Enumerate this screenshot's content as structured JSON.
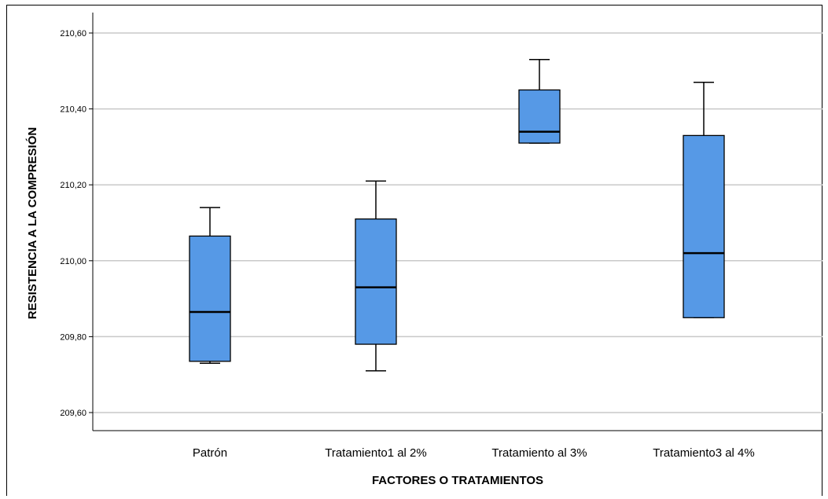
{
  "chart_data": {
    "type": "box",
    "xlabel": "FACTORES O TRATAMIENTOS",
    "ylabel": "RESISTENCIA A LA COMPRESIÓN",
    "ylim": [
      209.55,
      210.6
    ],
    "yticks": [
      209.6,
      209.8,
      210.0,
      210.2,
      210.4,
      210.6
    ],
    "ytick_labels": [
      "209,60",
      "209,80",
      "210,00",
      "210,20",
      "210,40",
      "210,60"
    ],
    "grid": true,
    "box_color": "#5699e6",
    "categories": [
      "Patrón",
      "Tratamiento1 al 2%",
      "Tratamiento al 3%",
      "Tratamiento3 al 4%"
    ],
    "boxes": [
      {
        "min": 209.73,
        "q1": 209.735,
        "median": 209.865,
        "q3": 210.065,
        "max": 210.14
      },
      {
        "min": 209.71,
        "q1": 209.78,
        "median": 209.93,
        "q3": 210.11,
        "max": 210.21
      },
      {
        "min": 210.31,
        "q1": 210.31,
        "median": 210.34,
        "q3": 210.45,
        "max": 210.53
      },
      {
        "min": 209.85,
        "q1": 209.85,
        "median": 210.02,
        "q3": 210.33,
        "max": 210.47
      }
    ]
  }
}
